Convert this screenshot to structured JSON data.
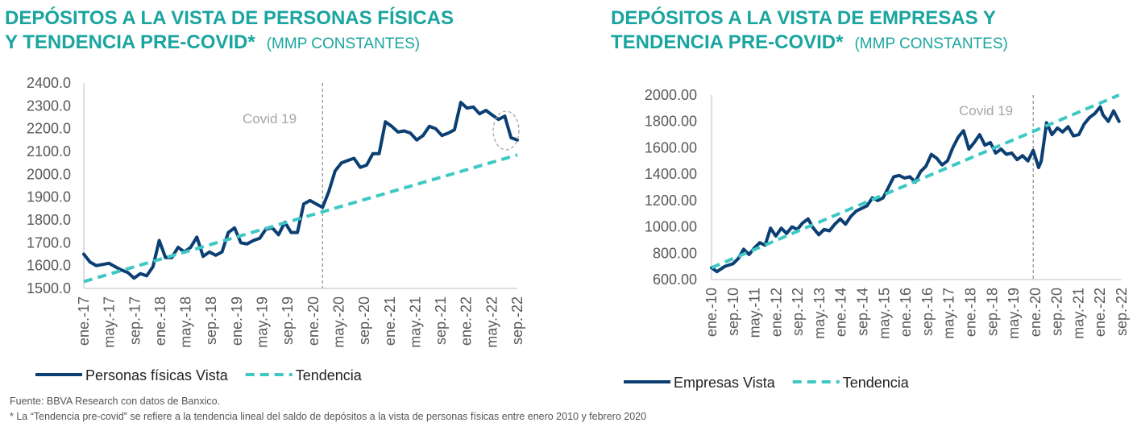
{
  "charts_meta": {
    "left": {
      "title_line1": "DEPÓSITOS A LA VISTA DE PERSONAS FÍSICAS",
      "title_line2": "Y TENDENCIA PRE-COVID*",
      "unit": "(MMP CONSTANTES)"
    },
    "right": {
      "title_line1": "DEPÓSITOS A LA VISTA DE EMPRESAS Y",
      "title_line2": "TENDENCIA PRE-COVID*",
      "unit": "(MMP CONSTANTES)"
    }
  },
  "footer": {
    "source": "Fuente: BBVA Research con datos de Banxico.",
    "note": "* La “Tendencia pre-covid” se refiere a la tendencia lineal del saldo de depósitos a la vista de personas físicas entre enero 2010 y febrero 2020"
  },
  "colors": {
    "series": "#0b3f73",
    "trend": "#3ec8c4",
    "title": "#1aa5a0",
    "covid_line": "#8c8c8c"
  },
  "chart_data": [
    {
      "type": "line",
      "title": "DEPÓSITOS A LA VISTA DE PERSONAS FÍSICAS Y TENDENCIA PRE-COVID* (MMP CONSTANTES)",
      "x_start": "2017-01",
      "x_end": "2022-09",
      "x_tick_labels": [
        "ene.-17",
        "may.-17",
        "sep.-17",
        "ene.-18",
        "may.-18",
        "sep.-18",
        "ene.-19",
        "may.-19",
        "sep.-19",
        "ene.-20",
        "may.-20",
        "sep.-20",
        "ene.-21",
        "may.-21",
        "sep.-21",
        "ene.-22",
        "may.-22",
        "sep.-22"
      ],
      "y_tick_labels": [
        "2400.0",
        "2300.0",
        "2200.0",
        "2100.0",
        "2000.0",
        "1900.0",
        "1800.0",
        "1700.0",
        "1600.0",
        "1500.0"
      ],
      "ylim": [
        1500,
        2400
      ],
      "legend_position": "bottom-left",
      "annotation": {
        "label": "Covid 19",
        "x": "2020-03"
      },
      "series": [
        {
          "name": "Personas físicas Vista",
          "style": "solid",
          "points": [
            [
              "2017-01",
              1650
            ],
            [
              "2017-02",
              1615
            ],
            [
              "2017-03",
              1600
            ],
            [
              "2017-04",
              1605
            ],
            [
              "2017-05",
              1610
            ],
            [
              "2017-06",
              1595
            ],
            [
              "2017-07",
              1580
            ],
            [
              "2017-08",
              1570
            ],
            [
              "2017-09",
              1545
            ],
            [
              "2017-10",
              1565
            ],
            [
              "2017-11",
              1555
            ],
            [
              "2017-12",
              1595
            ],
            [
              "2018-01",
              1710
            ],
            [
              "2018-02",
              1635
            ],
            [
              "2018-03",
              1635
            ],
            [
              "2018-04",
              1680
            ],
            [
              "2018-05",
              1660
            ],
            [
              "2018-06",
              1680
            ],
            [
              "2018-07",
              1725
            ],
            [
              "2018-08",
              1640
            ],
            [
              "2018-09",
              1660
            ],
            [
              "2018-10",
              1645
            ],
            [
              "2018-11",
              1660
            ],
            [
              "2018-12",
              1745
            ],
            [
              "2019-01",
              1765
            ],
            [
              "2019-02",
              1700
            ],
            [
              "2019-03",
              1695
            ],
            [
              "2019-04",
              1710
            ],
            [
              "2019-05",
              1720
            ],
            [
              "2019-06",
              1760
            ],
            [
              "2019-07",
              1765
            ],
            [
              "2019-08",
              1735
            ],
            [
              "2019-09",
              1790
            ],
            [
              "2019-10",
              1745
            ],
            [
              "2019-11",
              1745
            ],
            [
              "2019-12",
              1870
            ],
            [
              "2020-01",
              1885
            ],
            [
              "2020-02",
              1870
            ],
            [
              "2020-03",
              1855
            ],
            [
              "2020-04",
              1925
            ],
            [
              "2020-05",
              2015
            ],
            [
              "2020-06",
              2050
            ],
            [
              "2020-07",
              2060
            ],
            [
              "2020-08",
              2070
            ],
            [
              "2020-09",
              2030
            ],
            [
              "2020-10",
              2040
            ],
            [
              "2020-11",
              2090
            ],
            [
              "2020-12",
              2090
            ],
            [
              "2021-01",
              2230
            ],
            [
              "2021-02",
              2210
            ],
            [
              "2021-03",
              2185
            ],
            [
              "2021-04",
              2190
            ],
            [
              "2021-05",
              2180
            ],
            [
              "2021-06",
              2150
            ],
            [
              "2021-07",
              2170
            ],
            [
              "2021-08",
              2210
            ],
            [
              "2021-09",
              2200
            ],
            [
              "2021-10",
              2170
            ],
            [
              "2021-11",
              2180
            ],
            [
              "2021-12",
              2195
            ],
            [
              "2022-01",
              2315
            ],
            [
              "2022-02",
              2290
            ],
            [
              "2022-03",
              2295
            ],
            [
              "2022-04",
              2265
            ],
            [
              "2022-05",
              2280
            ],
            [
              "2022-06",
              2260
            ],
            [
              "2022-07",
              2240
            ],
            [
              "2022-08",
              2255
            ],
            [
              "2022-09",
              2160
            ],
            [
              "2022-10",
              2150
            ]
          ]
        },
        {
          "name": "Tendencia",
          "style": "dashed",
          "points": [
            [
              "2017-01",
              1530
            ],
            [
              "2022-10",
              2085
            ]
          ]
        }
      ]
    },
    {
      "type": "line",
      "title": "DEPÓSITOS A LA VISTA DE EMPRESAS Y TENDENCIA PRE-COVID* (MMP CONSTANTES)",
      "x_start": "2010-01",
      "x_end": "2022-09",
      "x_tick_labels": [
        "ene.-10",
        "sep.-10",
        "may.-11",
        "ene.-12",
        "sep.-12",
        "may.-13",
        "ene.-14",
        "sep.-14",
        "may.-15",
        "ene.-16",
        "sep.-16",
        "may.-17",
        "ene.-18",
        "sep.-18",
        "may.-19",
        "ene.-20",
        "sep.-20",
        "may.-21",
        "ene.-22",
        "sep.-22"
      ],
      "y_tick_labels": [
        "2000.00",
        "1800.00",
        "1600.00",
        "1400.00",
        "1200.00",
        "1000.00",
        "800.00",
        "600.00"
      ],
      "ylim": [
        600,
        2000
      ],
      "legend_position": "bottom-left",
      "annotation": {
        "label": "Covid 19",
        "x": "2020-01"
      },
      "series": [
        {
          "name": "Empresas Vista",
          "style": "solid",
          "points": [
            [
              "2010-01",
              690
            ],
            [
              "2010-03",
              660
            ],
            [
              "2010-06",
              700
            ],
            [
              "2010-09",
              720
            ],
            [
              "2010-11",
              760
            ],
            [
              "2011-01",
              830
            ],
            [
              "2011-03",
              790
            ],
            [
              "2011-05",
              840
            ],
            [
              "2011-07",
              880
            ],
            [
              "2011-09",
              860
            ],
            [
              "2011-11",
              990
            ],
            [
              "2012-01",
              930
            ],
            [
              "2012-03",
              990
            ],
            [
              "2012-05",
              950
            ],
            [
              "2012-07",
              1000
            ],
            [
              "2012-09",
              980
            ],
            [
              "2012-11",
              1030
            ],
            [
              "2013-01",
              1060
            ],
            [
              "2013-03",
              990
            ],
            [
              "2013-05",
              940
            ],
            [
              "2013-07",
              980
            ],
            [
              "2013-09",
              970
            ],
            [
              "2013-11",
              1020
            ],
            [
              "2014-01",
              1060
            ],
            [
              "2014-03",
              1020
            ],
            [
              "2014-05",
              1080
            ],
            [
              "2014-07",
              1120
            ],
            [
              "2014-09",
              1140
            ],
            [
              "2014-11",
              1160
            ],
            [
              "2015-01",
              1220
            ],
            [
              "2015-03",
              1200
            ],
            [
              "2015-05",
              1220
            ],
            [
              "2015-07",
              1300
            ],
            [
              "2015-09",
              1380
            ],
            [
              "2015-11",
              1390
            ],
            [
              "2016-01",
              1370
            ],
            [
              "2016-03",
              1380
            ],
            [
              "2016-05",
              1340
            ],
            [
              "2016-07",
              1420
            ],
            [
              "2016-09",
              1460
            ],
            [
              "2016-11",
              1550
            ],
            [
              "2017-01",
              1520
            ],
            [
              "2017-03",
              1470
            ],
            [
              "2017-05",
              1500
            ],
            [
              "2017-07",
              1600
            ],
            [
              "2017-09",
              1680
            ],
            [
              "2017-11",
              1730
            ],
            [
              "2018-01",
              1590
            ],
            [
              "2018-03",
              1640
            ],
            [
              "2018-05",
              1700
            ],
            [
              "2018-07",
              1620
            ],
            [
              "2018-09",
              1640
            ],
            [
              "2018-11",
              1560
            ],
            [
              "2019-01",
              1590
            ],
            [
              "2019-03",
              1550
            ],
            [
              "2019-05",
              1560
            ],
            [
              "2019-07",
              1510
            ],
            [
              "2019-09",
              1540
            ],
            [
              "2019-11",
              1500
            ],
            [
              "2020-01",
              1580
            ],
            [
              "2020-03",
              1450
            ],
            [
              "2020-04",
              1500
            ],
            [
              "2020-06",
              1790
            ],
            [
              "2020-08",
              1700
            ],
            [
              "2020-10",
              1750
            ],
            [
              "2020-12",
              1720
            ],
            [
              "2021-02",
              1760
            ],
            [
              "2021-04",
              1690
            ],
            [
              "2021-06",
              1700
            ],
            [
              "2021-08",
              1780
            ],
            [
              "2021-10",
              1830
            ],
            [
              "2021-12",
              1860
            ],
            [
              "2022-02",
              1910
            ],
            [
              "2022-03",
              1850
            ],
            [
              "2022-05",
              1800
            ],
            [
              "2022-07",
              1880
            ],
            [
              "2022-09",
              1800
            ]
          ]
        },
        {
          "name": "Tendencia",
          "style": "dashed",
          "points": [
            [
              "2010-01",
              690
            ],
            [
              "2022-09",
              2000
            ]
          ]
        }
      ]
    }
  ]
}
